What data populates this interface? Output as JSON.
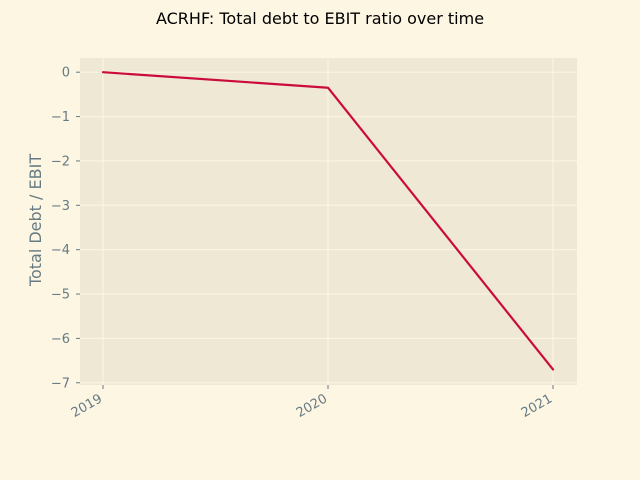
{
  "chart_data": {
    "type": "line",
    "title": "ACRHF: Total debt to EBIT ratio over time",
    "xlabel": "",
    "ylabel": "Total Debt / EBIT",
    "categories": [
      "2019",
      "2020",
      "2021"
    ],
    "series": [
      {
        "values": [
          0.0,
          -0.35,
          -6.7
        ]
      }
    ],
    "ylim": [
      -7.05,
      0.32
    ],
    "yticks": [
      0,
      -1,
      -2,
      -3,
      -4,
      -5,
      -6,
      -7
    ],
    "ytick_labels": [
      "0",
      "−1",
      "−2",
      "−3",
      "−4",
      "−5",
      "−6",
      "−7"
    ],
    "grid": true,
    "colors": {
      "background": "#fdf6e3",
      "plot_area": "#eee8d5",
      "grid": "#fdf6e3",
      "line": "#cb0b3b",
      "text": "#657b83"
    }
  }
}
